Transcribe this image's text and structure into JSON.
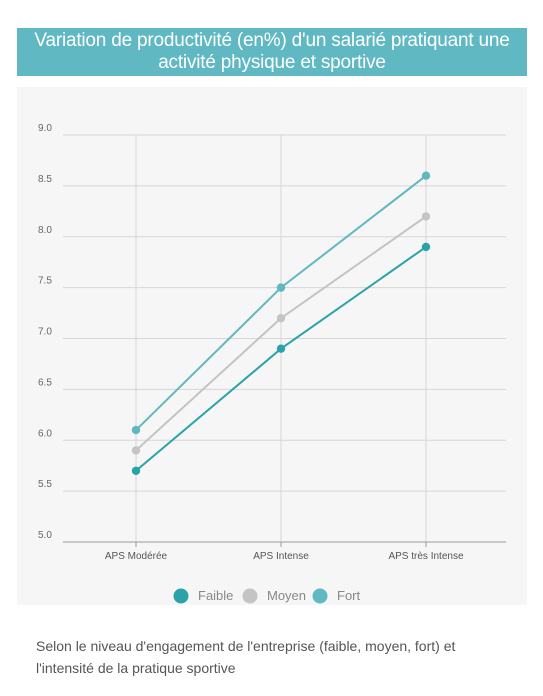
{
  "title": "Variation de productivité (en%) d'un salarié pratiquant une activité physique et sportive",
  "caption": "Selon le niveau d'engagement de l'entreprise (faible, moyen, fort) et l'intensité de la pratique sportive",
  "chart_data": {
    "type": "line",
    "categories": [
      "APS Modérée",
      "APS Intense",
      "APS très Intense"
    ],
    "y_ticks": [
      "5.0",
      "5.5",
      "6.0",
      "6.5",
      "7.0",
      "7.5",
      "8.0",
      "8.5",
      "9.0"
    ],
    "ylim": [
      5.0,
      9.0
    ],
    "grid": true,
    "legend_position": "bottom",
    "series": [
      {
        "name": "Faible",
        "values": [
          5.7,
          6.9,
          7.9
        ],
        "color": "#2aa3a8"
      },
      {
        "name": "Moyen",
        "values": [
          5.9,
          7.2,
          8.2
        ],
        "color": "#c4c4c4"
      },
      {
        "name": "Fort",
        "values": [
          6.1,
          7.5,
          8.6
        ],
        "color": "#5fb8c2"
      }
    ]
  }
}
